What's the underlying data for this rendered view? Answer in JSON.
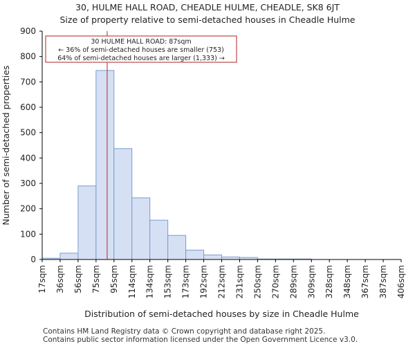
{
  "header": {
    "title_line1": "30, HULME HALL ROAD, CHEADLE HULME, CHEADLE, SK8 6JT",
    "title_line2": "Size of property relative to semi-detached houses in Cheadle Hulme"
  },
  "chart_data": {
    "type": "bar",
    "title": "Size of property relative to semi-detached houses in Cheadle Hulme",
    "xlabel": "Distribution of semi-detached houses by size in Cheadle Hulme",
    "ylabel": "Number of semi-detached properties",
    "tick_labels": [
      "17sqm",
      "36sqm",
      "56sqm",
      "75sqm",
      "95sqm",
      "114sqm",
      "134sqm",
      "153sqm",
      "173sqm",
      "192sqm",
      "212sqm",
      "231sqm",
      "250sqm",
      "270sqm",
      "289sqm",
      "309sqm",
      "328sqm",
      "348sqm",
      "367sqm",
      "387sqm",
      "406sqm"
    ],
    "values": [
      5,
      25,
      290,
      745,
      437,
      243,
      155,
      95,
      37,
      18,
      10,
      8,
      2,
      2,
      2,
      0,
      0,
      0,
      0,
      0
    ],
    "ylim": [
      0,
      900
    ],
    "yticks": [
      0,
      100,
      200,
      300,
      400,
      500,
      600,
      700,
      800,
      900
    ],
    "bar_color": "#d6e0f4",
    "bar_edge_color": "#7a9ccd",
    "marker": {
      "value_index": 3.62,
      "color": "#b22222"
    },
    "annotation": {
      "line1": "30 HULME HALL ROAD: 87sqm",
      "line2": "← 36% of semi-detached houses are smaller (753)",
      "line3": "64% of semi-detached houses are larger (1,333) →"
    }
  },
  "footer": {
    "line1": "Contains HM Land Registry data © Crown copyright and database right 2025.",
    "line2": "Contains public sector information licensed under the Open Government Licence v3.0."
  }
}
